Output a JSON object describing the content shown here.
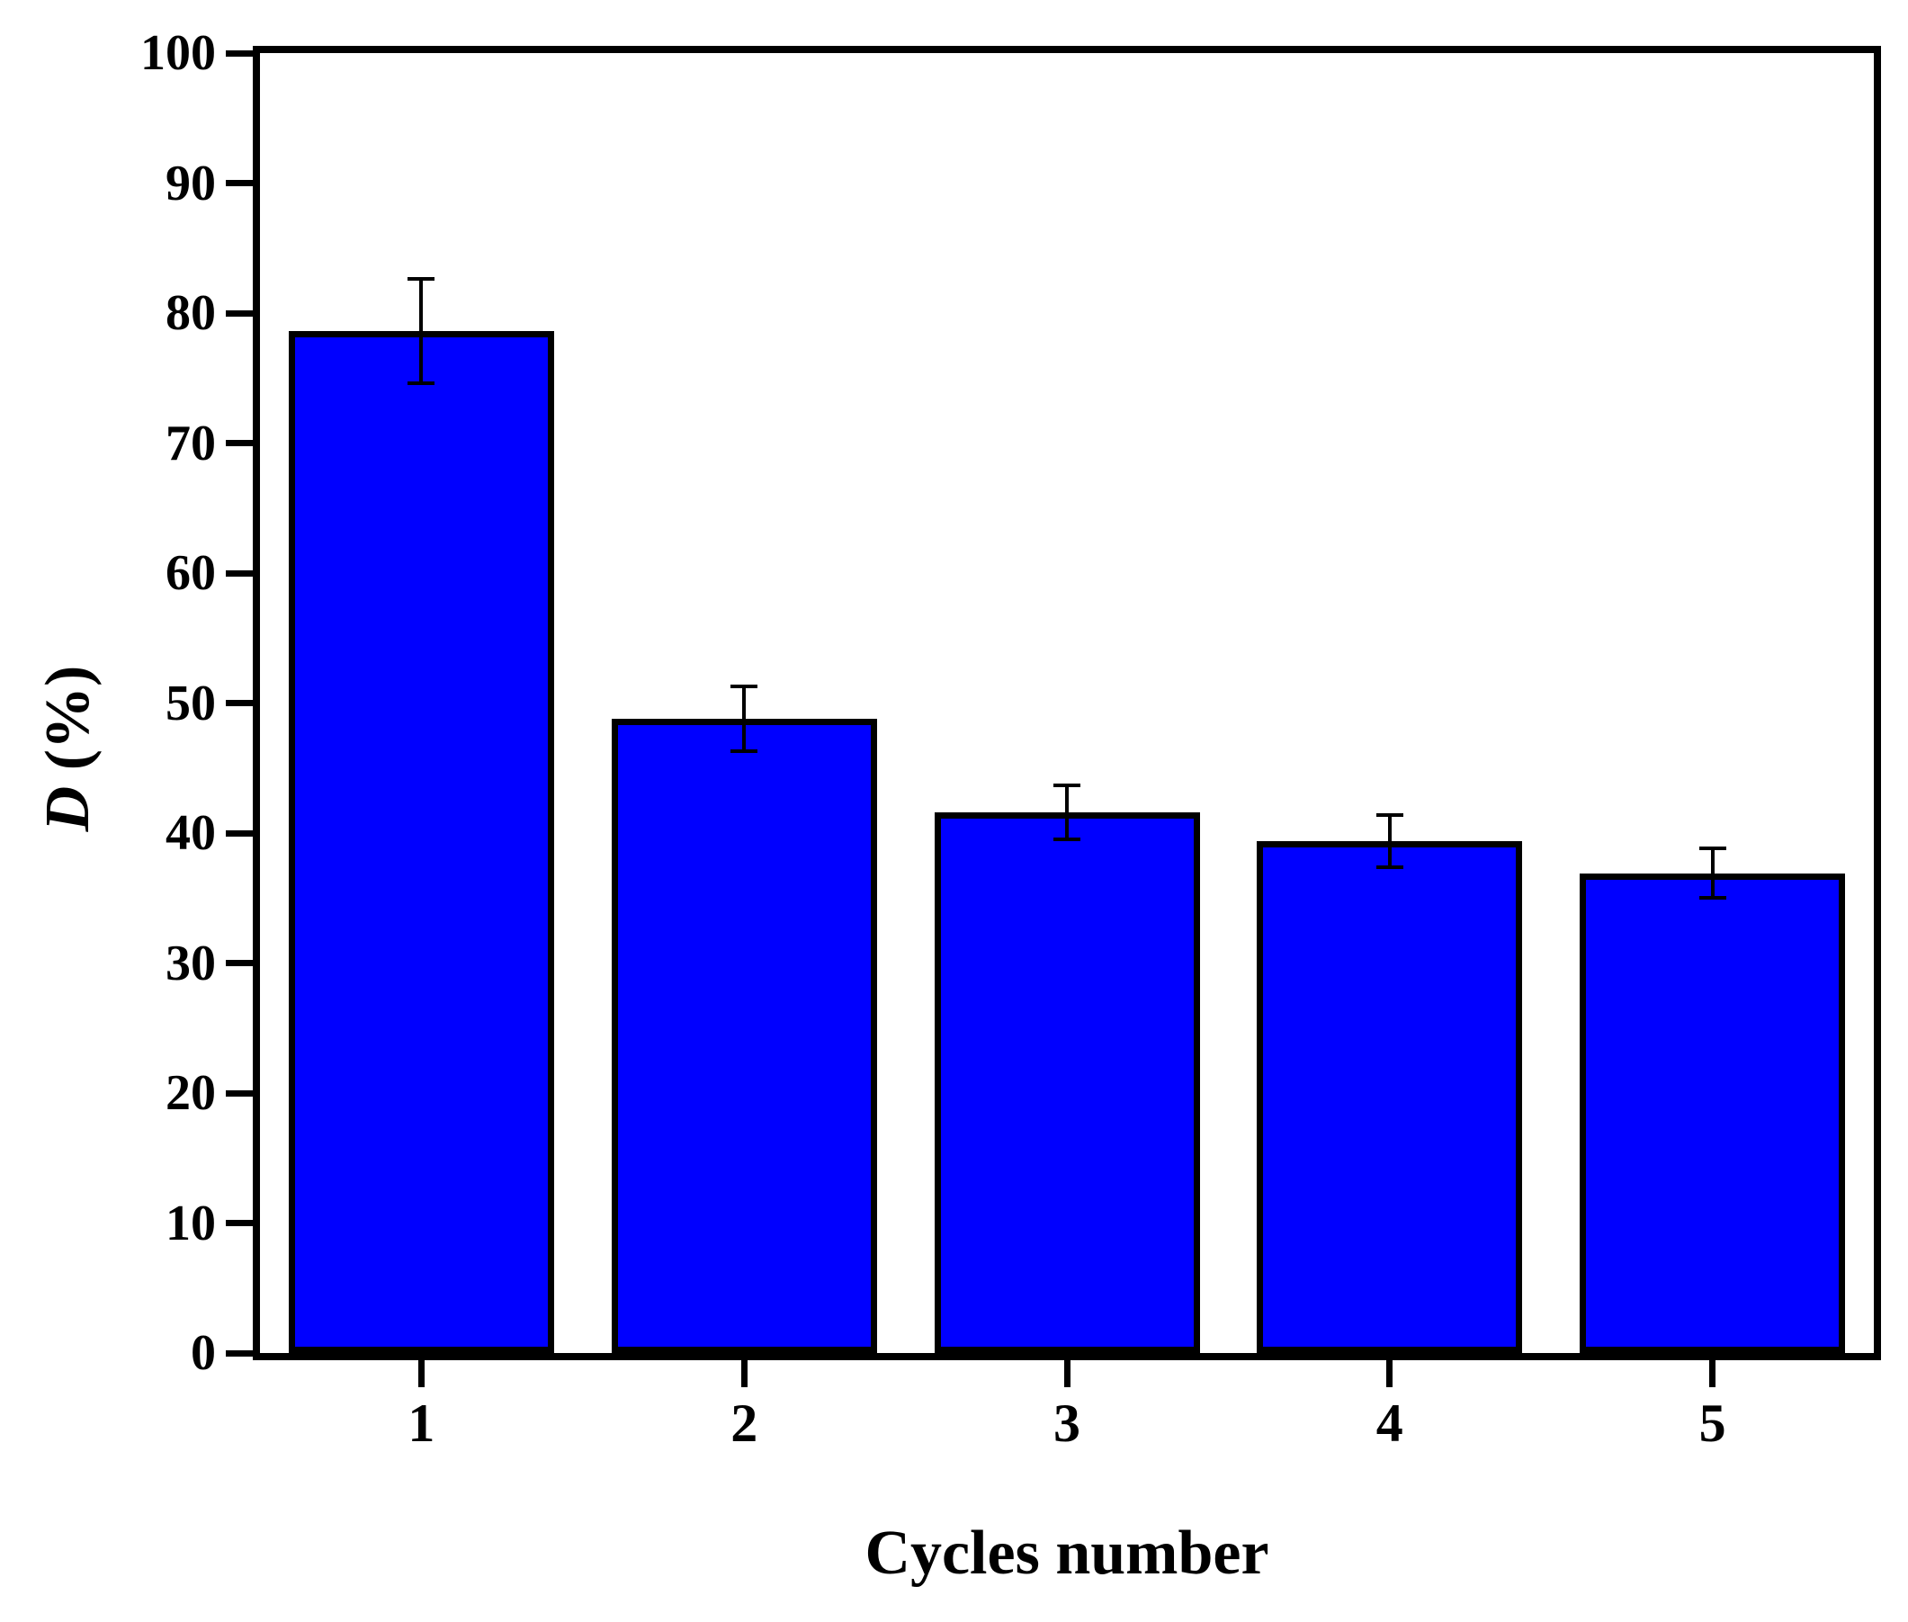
{
  "chart_data": {
    "type": "bar",
    "title": "",
    "categories": [
      "1",
      "2",
      "3",
      "4",
      "5"
    ],
    "values": [
      78.6,
      48.8,
      41.6,
      39.4,
      36.9
    ],
    "error_bars": [
      4.0,
      2.5,
      2.1,
      2.0,
      1.9
    ],
    "xlabel": "Cycles number",
    "ylabel": "D (%)",
    "ylabel_variable": "D",
    "ylabel_unit": " (%)",
    "ylim": [
      0,
      100
    ],
    "yticks": [
      0,
      10,
      20,
      30,
      40,
      50,
      60,
      70,
      80,
      90,
      100
    ],
    "grid": false,
    "legend_position": "none",
    "bar_color": "#0000FF",
    "bar_border_color": "#000000",
    "error_bar_color": "#000000",
    "axis_color": "#000000",
    "background_color": "#FFFFFF"
  }
}
